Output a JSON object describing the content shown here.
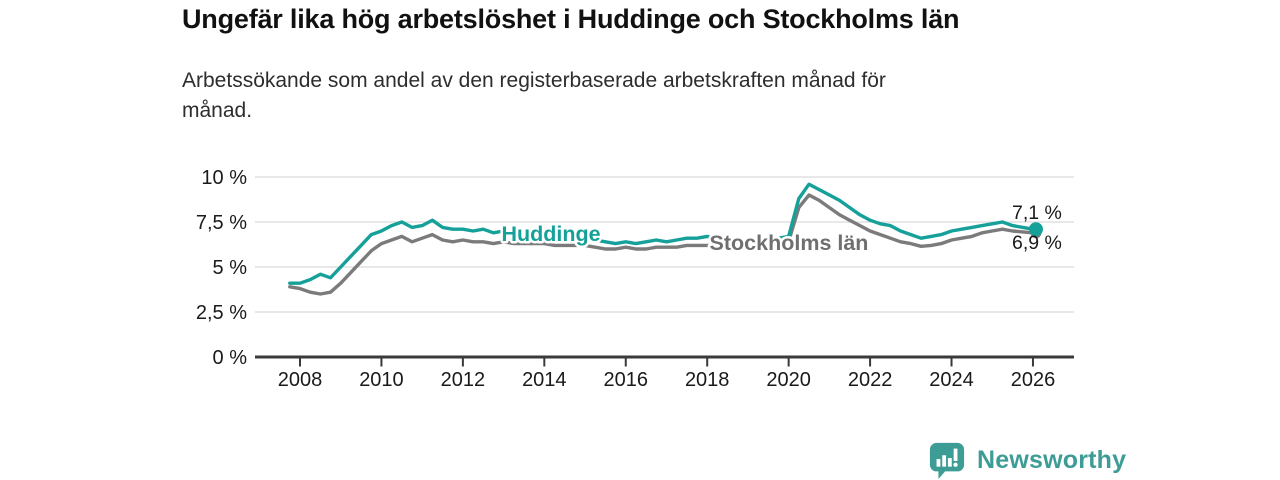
{
  "header": {
    "title": "Ungefär lika hög arbetslöshet i Huddinge och Stockholms län",
    "subtitle_lines": [
      "Arbetssökande som andel av den registerbaserade arbetskraften månad för",
      "månad."
    ]
  },
  "footer": {
    "brand": "Newsworthy",
    "brand_color": "#3E9C96",
    "logo_icon": "bar-chart-speech-bubble"
  },
  "chart_data": {
    "type": "line",
    "title": "Ungefär lika hög arbetslöshet i Huddinge och Stockholms län",
    "xlabel": "",
    "ylabel": "",
    "grid": "horizontal",
    "legend": "inline-labels",
    "ylim": [
      0,
      10.4
    ],
    "xlim": [
      2006.9,
      2027
    ],
    "colors": {
      "grid": "#d9d9d9",
      "axis": "#3a3a3a",
      "text": "#1a1a1a"
    },
    "yticks": {
      "values": [
        0,
        2.5,
        5,
        7.5,
        10
      ],
      "labels": [
        "0 %",
        "2,5 %",
        "5 %",
        "7,5 %",
        "10 %"
      ]
    },
    "xticks": {
      "values": [
        2008,
        2010,
        2012,
        2014,
        2016,
        2018,
        2020,
        2022,
        2024,
        2026
      ],
      "labels": [
        "2008",
        "2010",
        "2012",
        "2014",
        "2016",
        "2018",
        "2020",
        "2022",
        "2024",
        "2026"
      ]
    },
    "x": [
      2007.75,
      2008,
      2008.25,
      2008.5,
      2008.75,
      2009,
      2009.25,
      2009.5,
      2009.75,
      2010,
      2010.25,
      2010.5,
      2010.75,
      2011,
      2011.25,
      2011.5,
      2011.75,
      2012,
      2012.25,
      2012.5,
      2012.75,
      2013,
      2013.25,
      2013.5,
      2013.75,
      2014,
      2014.25,
      2014.5,
      2014.75,
      2015,
      2015.25,
      2015.5,
      2015.75,
      2016,
      2016.25,
      2016.5,
      2016.75,
      2017,
      2017.25,
      2017.5,
      2017.75,
      2018,
      2018.25,
      2018.5,
      2018.75,
      2019,
      2019.25,
      2019.5,
      2019.75,
      2020,
      2020.25,
      2020.5,
      2020.75,
      2021,
      2021.25,
      2021.5,
      2021.75,
      2022,
      2022.25,
      2022.5,
      2022.75,
      2023,
      2023.25,
      2023.5,
      2023.75,
      2024,
      2024.25,
      2024.5,
      2024.75,
      2025,
      2025.25,
      2025.5,
      2025.75,
      2026
    ],
    "series": [
      {
        "name": "Huddinge",
        "slug": "huddinge",
        "color": "#15A199",
        "label_color": "#15A199",
        "end_label": "7,1 %",
        "end_value": 7.1,
        "values": [
          4.1,
          4.1,
          4.3,
          4.6,
          4.4,
          5.0,
          5.6,
          6.2,
          6.8,
          7.0,
          7.3,
          7.5,
          7.2,
          7.3,
          7.6,
          7.2,
          7.1,
          7.1,
          7.0,
          7.1,
          6.9,
          7.0,
          6.9,
          6.9,
          6.8,
          6.8,
          6.7,
          6.7,
          6.6,
          6.6,
          6.5,
          6.4,
          6.3,
          6.4,
          6.3,
          6.4,
          6.5,
          6.4,
          6.5,
          6.6,
          6.6,
          6.7,
          6.6,
          6.5,
          6.4,
          6.4,
          6.5,
          6.5,
          6.6,
          6.7,
          8.8,
          9.6,
          9.3,
          9.0,
          8.7,
          8.3,
          7.9,
          7.6,
          7.4,
          7.3,
          7.0,
          6.8,
          6.6,
          6.7,
          6.8,
          7.0,
          7.1,
          7.2,
          7.3,
          7.4,
          7.5,
          7.3,
          7.2,
          7.1
        ]
      },
      {
        "name": "Stockholms län",
        "slug": "stockholms-lan",
        "color": "#7B7B7B",
        "label_color": "#6F6F6F",
        "end_label": "6,9 %",
        "end_value": 6.9,
        "values": [
          3.9,
          3.8,
          3.6,
          3.5,
          3.6,
          4.1,
          4.7,
          5.3,
          5.9,
          6.3,
          6.5,
          6.7,
          6.4,
          6.6,
          6.8,
          6.5,
          6.4,
          6.5,
          6.4,
          6.4,
          6.3,
          6.4,
          6.3,
          6.3,
          6.3,
          6.3,
          6.2,
          6.2,
          6.2,
          6.2,
          6.1,
          6.0,
          6.0,
          6.1,
          6.0,
          6.0,
          6.1,
          6.1,
          6.1,
          6.2,
          6.2,
          6.2,
          6.2,
          6.1,
          6.1,
          6.1,
          6.2,
          6.2,
          6.3,
          6.4,
          8.3,
          9.0,
          8.7,
          8.3,
          7.9,
          7.6,
          7.3,
          7.0,
          6.8,
          6.6,
          6.4,
          6.3,
          6.15,
          6.2,
          6.3,
          6.5,
          6.6,
          6.7,
          6.9,
          7.0,
          7.1,
          7.0,
          6.95,
          6.9
        ]
      }
    ]
  }
}
